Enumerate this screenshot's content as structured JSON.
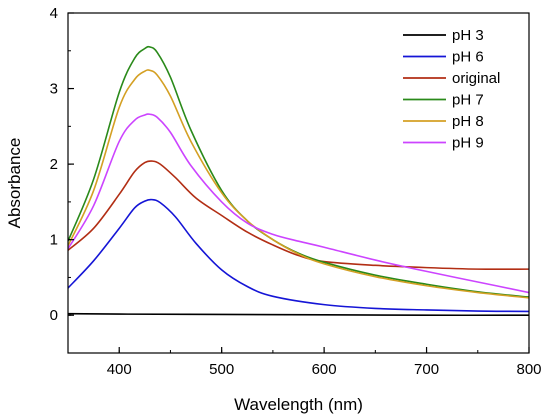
{
  "chart_data": {
    "type": "line",
    "title": "",
    "xlabel": "Wavelength (nm)",
    "ylabel": "Absorbance",
    "xlim": [
      350,
      800
    ],
    "ylim": [
      -0.5,
      4
    ],
    "x_ticks": [
      400,
      500,
      600,
      700,
      800
    ],
    "y_ticks": [
      0,
      1,
      2,
      3,
      4
    ],
    "grid": false,
    "legend_position": "top-right",
    "series": [
      {
        "name": "pH 3",
        "color": "#000000",
        "points": [
          [
            350,
            0.02
          ],
          [
            400,
            0.015
          ],
          [
            500,
            0.01
          ],
          [
            600,
            0.005
          ],
          [
            700,
            0.0
          ],
          [
            800,
            0.0
          ]
        ]
      },
      {
        "name": "pH 6",
        "color": "#1515d6",
        "points": [
          [
            350,
            0.36
          ],
          [
            375,
            0.72
          ],
          [
            400,
            1.15
          ],
          [
            415,
            1.42
          ],
          [
            425,
            1.51
          ],
          [
            432,
            1.53
          ],
          [
            440,
            1.49
          ],
          [
            455,
            1.3
          ],
          [
            475,
            0.95
          ],
          [
            500,
            0.6
          ],
          [
            525,
            0.38
          ],
          [
            550,
            0.25
          ],
          [
            600,
            0.14
          ],
          [
            650,
            0.09
          ],
          [
            700,
            0.07
          ],
          [
            750,
            0.055
          ],
          [
            800,
            0.05
          ]
        ]
      },
      {
        "name": "original",
        "color": "#b22e14",
        "points": [
          [
            350,
            0.86
          ],
          [
            375,
            1.15
          ],
          [
            400,
            1.6
          ],
          [
            415,
            1.9
          ],
          [
            425,
            2.02
          ],
          [
            432,
            2.04
          ],
          [
            440,
            2.0
          ],
          [
            455,
            1.82
          ],
          [
            475,
            1.55
          ],
          [
            500,
            1.32
          ],
          [
            525,
            1.1
          ],
          [
            550,
            0.93
          ],
          [
            575,
            0.79
          ],
          [
            600,
            0.71
          ],
          [
            650,
            0.66
          ],
          [
            700,
            0.63
          ],
          [
            750,
            0.61
          ],
          [
            800,
            0.61
          ]
        ]
      },
      {
        "name": "pH 7",
        "color": "#2a8a1a",
        "points": [
          [
            350,
            0.98
          ],
          [
            375,
            1.8
          ],
          [
            400,
            2.95
          ],
          [
            415,
            3.4
          ],
          [
            425,
            3.53
          ],
          [
            430,
            3.55
          ],
          [
            437,
            3.48
          ],
          [
            450,
            3.15
          ],
          [
            470,
            2.45
          ],
          [
            500,
            1.65
          ],
          [
            525,
            1.25
          ],
          [
            550,
            1.0
          ],
          [
            575,
            0.82
          ],
          [
            600,
            0.7
          ],
          [
            650,
            0.53
          ],
          [
            700,
            0.41
          ],
          [
            750,
            0.31
          ],
          [
            800,
            0.24
          ]
        ]
      },
      {
        "name": "pH 8",
        "color": "#d4a024",
        "points": [
          [
            350,
            0.92
          ],
          [
            375,
            1.65
          ],
          [
            400,
            2.75
          ],
          [
            415,
            3.12
          ],
          [
            425,
            3.23
          ],
          [
            430,
            3.24
          ],
          [
            437,
            3.18
          ],
          [
            450,
            2.9
          ],
          [
            470,
            2.3
          ],
          [
            500,
            1.62
          ],
          [
            525,
            1.25
          ],
          [
            550,
            1.0
          ],
          [
            575,
            0.81
          ],
          [
            600,
            0.68
          ],
          [
            650,
            0.51
          ],
          [
            700,
            0.39
          ],
          [
            750,
            0.3
          ],
          [
            800,
            0.23
          ]
        ]
      },
      {
        "name": "pH 9",
        "color": "#cc44ff",
        "points": [
          [
            350,
            0.88
          ],
          [
            375,
            1.45
          ],
          [
            400,
            2.3
          ],
          [
            415,
            2.58
          ],
          [
            425,
            2.65
          ],
          [
            430,
            2.66
          ],
          [
            437,
            2.62
          ],
          [
            450,
            2.42
          ],
          [
            470,
            1.98
          ],
          [
            500,
            1.5
          ],
          [
            525,
            1.22
          ],
          [
            550,
            1.07
          ],
          [
            575,
            0.98
          ],
          [
            600,
            0.9
          ],
          [
            650,
            0.73
          ],
          [
            700,
            0.58
          ],
          [
            750,
            0.44
          ],
          [
            800,
            0.3
          ]
        ]
      }
    ]
  }
}
